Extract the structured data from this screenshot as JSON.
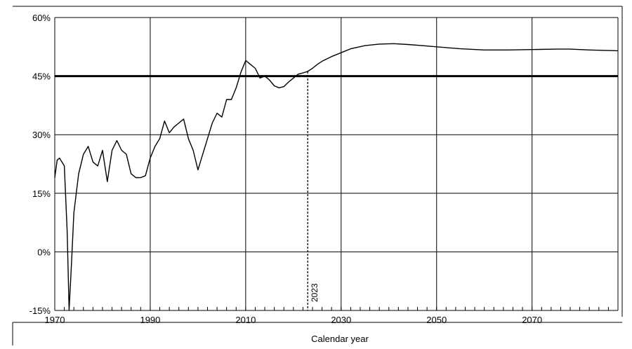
{
  "chart_data": {
    "type": "line",
    "title": "",
    "xlabel": "Calendar year",
    "ylabel": "",
    "xlim": [
      1970,
      2088
    ],
    "ylim": [
      -15,
      60
    ],
    "grid": true,
    "x_ticks": [
      1970,
      1990,
      2010,
      2030,
      2050,
      2070
    ],
    "x_tick_labels": [
      "1970",
      "1990",
      "2010",
      "2030",
      "2050",
      "2070"
    ],
    "y_ticks": [
      -15,
      0,
      15,
      30,
      45,
      60
    ],
    "y_tick_labels": [
      "-15%",
      "0%",
      "15%",
      "30%",
      "45%",
      "60%"
    ],
    "reference_line": {
      "y": 45
    },
    "annotation": {
      "x": 2023,
      "label": "2023",
      "style": "dashed"
    },
    "series": [
      {
        "color": "#000000",
        "x": [
          1970,
          1970.5,
          1971,
          1972,
          1972.6,
          1973,
          1973.5,
          1974,
          1975,
          1976,
          1977,
          1978,
          1979,
          1980,
          1981,
          1982,
          1983,
          1984,
          1985,
          1986,
          1987,
          1988,
          1989,
          1990,
          1991,
          1992,
          1993,
          1994,
          1995,
          1996,
          1997,
          1998,
          1999,
          2000,
          2001,
          2002,
          2003,
          2004,
          2005,
          2006,
          2007,
          2008,
          2009,
          2010,
          2011,
          2012,
          2013,
          2014,
          2015,
          2016,
          2017,
          2018,
          2019,
          2020,
          2021,
          2022,
          2023,
          2024,
          2025,
          2026,
          2028,
          2030,
          2032,
          2035,
          2038,
          2041,
          2044,
          2047,
          2050,
          2055,
          2060,
          2065,
          2070,
          2075,
          2078,
          2082,
          2088
        ],
        "y": [
          19,
          23.5,
          24,
          22,
          5,
          -15,
          -3,
          10,
          20,
          25,
          27,
          23,
          22,
          26,
          18,
          26,
          28.5,
          26,
          25,
          20,
          19,
          19,
          19.5,
          24,
          27,
          29,
          33.5,
          30.5,
          32,
          33,
          34,
          29,
          26,
          21,
          25,
          29,
          33,
          35.5,
          34.5,
          39,
          39,
          42,
          46,
          49,
          48,
          47,
          44.5,
          45,
          44,
          42.5,
          42,
          42.3,
          43.5,
          44.5,
          45.5,
          45.8,
          46.2,
          47,
          48,
          48.8,
          50,
          51,
          52,
          52.8,
          53.2,
          53.3,
          53.1,
          52.8,
          52.5,
          52,
          51.7,
          51.7,
          51.8,
          51.9,
          51.9,
          51.7,
          51.5
        ]
      }
    ]
  }
}
